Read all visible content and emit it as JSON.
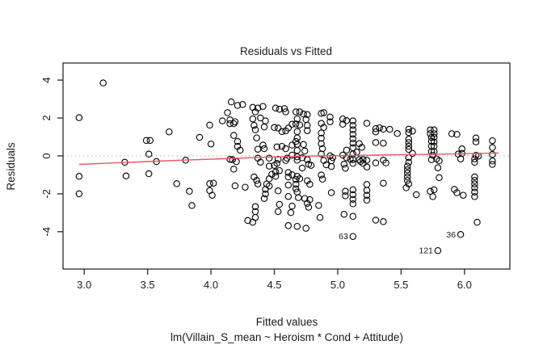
{
  "chart_data": {
    "type": "scatter",
    "title": "Residuals vs Fitted",
    "xlabel": "Fitted values",
    "xlabel_sub": "lm(Villain_S_mean ~ Heroism * Cond + Attitude)",
    "ylabel": "Residuals",
    "xlim": [
      2.833,
      6.358
    ],
    "ylim": [
      -5.97,
      4.9
    ],
    "x_ticks": [
      "3.0",
      "3.5",
      "4.0",
      "4.5",
      "5.0",
      "5.5",
      "6.0"
    ],
    "x_tick_values": [
      3.0,
      3.5,
      4.0,
      4.5,
      5.0,
      5.5,
      6.0
    ],
    "y_ticks": [
      "-4",
      "-2",
      "0",
      "2",
      "4"
    ],
    "y_tick_values": [
      -4,
      -2,
      0,
      2,
      4
    ],
    "grid": "off",
    "zero_line": {
      "y": 0,
      "style": "dotted",
      "color": "#b8b8b8"
    },
    "point_style": {
      "shape": "open-circle",
      "radius_px": 3.7,
      "stroke": "#000000",
      "fill": "none"
    },
    "smoother": {
      "name": "loess-smoother",
      "color": "#e8556a",
      "points": [
        [
          2.96,
          -0.45
        ],
        [
          3.2,
          -0.38
        ],
        [
          3.5,
          -0.3
        ],
        [
          3.8,
          -0.22
        ],
        [
          4.1,
          -0.15
        ],
        [
          4.4,
          -0.08
        ],
        [
          4.7,
          -0.02
        ],
        [
          5.0,
          0.01
        ],
        [
          5.3,
          0.04
        ],
        [
          5.6,
          0.07
        ],
        [
          5.9,
          0.1
        ],
        [
          6.27,
          0.15
        ]
      ]
    },
    "labeled_points": [
      {
        "label": "63",
        "x": 5.12,
        "y": -4.25
      },
      {
        "label": "121",
        "x": 5.79,
        "y": -5.0
      },
      {
        "label": "36",
        "x": 5.97,
        "y": -4.15
      }
    ],
    "points": [
      [
        2.96,
        2.02
      ],
      [
        2.96,
        -1.08
      ],
      [
        2.96,
        -2.0
      ],
      [
        3.15,
        3.85
      ],
      [
        3.32,
        -0.34
      ],
      [
        3.33,
        -1.06
      ],
      [
        3.49,
        0.81
      ],
      [
        3.52,
        0.81
      ],
      [
        3.51,
        0.09
      ],
      [
        3.51,
        -0.94
      ],
      [
        3.57,
        -0.3
      ],
      [
        3.67,
        1.27
      ],
      [
        3.73,
        -1.47
      ],
      [
        3.8,
        -0.23
      ],
      [
        3.83,
        -1.87
      ],
      [
        3.85,
        -2.62
      ],
      [
        3.91,
        0.98
      ],
      [
        3.99,
        1.62
      ],
      [
        4.0,
        0.63
      ],
      [
        3.99,
        -1.47
      ],
      [
        4.02,
        -1.44
      ],
      [
        3.99,
        -1.83
      ],
      [
        4.01,
        -2.08
      ],
      [
        4.09,
        1.85
      ],
      [
        4.15,
        1.9
      ],
      [
        4.19,
        1.8
      ],
      [
        4.13,
        2.28
      ],
      [
        4.16,
        2.85
      ],
      [
        4.15,
        1.7
      ],
      [
        4.18,
        1.7
      ],
      [
        4.18,
        1.08
      ],
      [
        4.21,
        2.66
      ],
      [
        4.25,
        2.71
      ],
      [
        4.21,
        0.76
      ],
      [
        4.21,
        0.5
      ],
      [
        4.23,
        0.3
      ],
      [
        4.15,
        -0.18
      ],
      [
        4.17,
        -0.2
      ],
      [
        4.2,
        -0.3
      ],
      [
        4.18,
        -0.7
      ],
      [
        4.19,
        -1.58
      ],
      [
        4.33,
        2.56
      ],
      [
        4.37,
        2.52
      ],
      [
        4.35,
        2.32
      ],
      [
        4.41,
        2.61
      ],
      [
        4.33,
        1.95
      ],
      [
        4.39,
        2.0
      ],
      [
        4.43,
        1.85
      ],
      [
        4.34,
        1.61
      ],
      [
        4.35,
        1.38
      ],
      [
        4.42,
        1.53
      ],
      [
        4.36,
        0.95
      ],
      [
        4.41,
        0.57
      ],
      [
        4.37,
        0.35
      ],
      [
        4.42,
        0.38
      ],
      [
        4.37,
        -0.12
      ],
      [
        4.39,
        -0.33
      ],
      [
        4.27,
        -1.65
      ],
      [
        4.34,
        -1.11
      ],
      [
        4.36,
        -1.3
      ],
      [
        4.37,
        -1.48
      ],
      [
        4.44,
        -1.48
      ],
      [
        4.46,
        -1.21
      ],
      [
        4.46,
        -1.59
      ],
      [
        4.43,
        -1.77
      ],
      [
        4.43,
        -2.01
      ],
      [
        4.42,
        -2.25
      ],
      [
        4.29,
        -3.41
      ],
      [
        4.33,
        -3.5
      ],
      [
        4.35,
        -3.25
      ],
      [
        4.35,
        -2.68
      ],
      [
        4.35,
        -2.94
      ],
      [
        4.51,
        2.52
      ],
      [
        4.54,
        2.46
      ],
      [
        4.58,
        2.49
      ],
      [
        4.59,
        2.32
      ],
      [
        4.5,
        1.5
      ],
      [
        4.53,
        1.47
      ],
      [
        4.56,
        1.28
      ],
      [
        4.59,
        1.32
      ],
      [
        4.61,
        1.47
      ],
      [
        4.64,
        1.67
      ],
      [
        4.52,
        0.47
      ],
      [
        4.56,
        0.5
      ],
      [
        4.59,
        0.38
      ],
      [
        4.64,
        0.57
      ],
      [
        4.64,
        0.04
      ],
      [
        4.46,
        -0.12
      ],
      [
        4.53,
        -0.18
      ],
      [
        4.6,
        -0.12
      ],
      [
        4.59,
        -0.24
      ],
      [
        4.52,
        -0.4
      ],
      [
        4.5,
        -0.5
      ],
      [
        4.46,
        -0.54
      ],
      [
        4.51,
        -0.85
      ],
      [
        4.54,
        -0.78
      ],
      [
        4.48,
        -0.97
      ],
      [
        4.51,
        -1.07
      ],
      [
        4.61,
        -0.88
      ],
      [
        4.61,
        -1.11
      ],
      [
        4.64,
        -1.0
      ],
      [
        4.61,
        -1.54
      ],
      [
        4.53,
        -1.85
      ],
      [
        4.61,
        -2.14
      ],
      [
        4.54,
        -2.56
      ],
      [
        4.53,
        -2.94
      ],
      [
        4.63,
        -2.99
      ],
      [
        4.61,
        -3.68
      ],
      [
        4.68,
        -3.72
      ],
      [
        4.75,
        -3.82
      ],
      [
        4.67,
        2.32
      ],
      [
        4.7,
        2.32
      ],
      [
        4.73,
        2.21
      ],
      [
        4.76,
        2.18
      ],
      [
        4.68,
        1.95
      ],
      [
        4.75,
        1.92
      ],
      [
        4.67,
        1.68
      ],
      [
        4.7,
        1.63
      ],
      [
        4.76,
        1.61
      ],
      [
        4.76,
        1.33
      ],
      [
        4.68,
        1.28
      ],
      [
        4.68,
        0.95
      ],
      [
        4.67,
        0.76
      ],
      [
        4.68,
        0.61
      ],
      [
        4.73,
        0.6
      ],
      [
        4.68,
        0.29
      ],
      [
        4.74,
        0.26
      ],
      [
        4.68,
        -0.05
      ],
      [
        4.72,
        -0.1
      ],
      [
        4.68,
        -0.23
      ],
      [
        4.76,
        -0.2
      ],
      [
        4.77,
        -0.44
      ],
      [
        4.79,
        -0.5
      ],
      [
        4.72,
        -0.64
      ],
      [
        4.68,
        -1.08
      ],
      [
        4.67,
        -1.25
      ],
      [
        4.7,
        -1.21
      ],
      [
        4.76,
        -1.31
      ],
      [
        4.78,
        -1.5
      ],
      [
        4.67,
        -1.5
      ],
      [
        4.67,
        -1.74
      ],
      [
        4.68,
        -1.91
      ],
      [
        4.69,
        -2.2
      ],
      [
        4.74,
        -2.25
      ],
      [
        4.78,
        -2.31
      ],
      [
        4.76,
        -2.51
      ],
      [
        4.77,
        -2.71
      ],
      [
        4.64,
        -2.65
      ],
      [
        4.85,
        -2.62
      ],
      [
        4.86,
        -3.25
      ],
      [
        4.87,
        2.24
      ],
      [
        4.89,
        2.28
      ],
      [
        4.94,
        2.05
      ],
      [
        4.94,
        1.8
      ],
      [
        4.87,
        1.71
      ],
      [
        4.89,
        1.5
      ],
      [
        4.87,
        1.21
      ],
      [
        4.87,
        0.93
      ],
      [
        4.87,
        0.64
      ],
      [
        4.88,
        0.38
      ],
      [
        4.87,
        0.1
      ],
      [
        4.94,
        0.0
      ],
      [
        4.96,
        -0.09
      ],
      [
        4.89,
        -0.24
      ],
      [
        4.95,
        -0.26
      ],
      [
        4.91,
        -0.47
      ],
      [
        4.95,
        -0.56
      ],
      [
        4.87,
        -1.01
      ],
      [
        4.88,
        -1.23
      ],
      [
        4.95,
        -1.94
      ],
      [
        5.04,
        1.95
      ],
      [
        5.07,
        1.86
      ],
      [
        5.04,
        1.67
      ],
      [
        5.12,
        1.85
      ],
      [
        5.12,
        1.61
      ],
      [
        5.12,
        1.38
      ],
      [
        5.12,
        1.14
      ],
      [
        5.12,
        0.9
      ],
      [
        5.12,
        0.67
      ],
      [
        5.12,
        0.43
      ],
      [
        5.07,
        0.3
      ],
      [
        5.04,
        0.04
      ],
      [
        5.12,
        0.1
      ],
      [
        5.15,
        0.2
      ],
      [
        5.19,
        0.45
      ],
      [
        5.17,
        0.65
      ],
      [
        5.07,
        -0.1
      ],
      [
        5.1,
        -0.18
      ],
      [
        5.05,
        -0.44
      ],
      [
        5.06,
        -0.65
      ],
      [
        5.12,
        -0.2
      ],
      [
        5.12,
        -0.4
      ],
      [
        5.17,
        -0.2
      ],
      [
        5.18,
        -0.3
      ],
      [
        5.06,
        -1.87
      ],
      [
        5.06,
        -2.11
      ],
      [
        5.12,
        -1.79
      ],
      [
        5.12,
        -2.05
      ],
      [
        5.12,
        -2.29
      ],
      [
        5.12,
        -2.53
      ],
      [
        5.05,
        -3.08
      ],
      [
        5.12,
        -3.19
      ],
      [
        5.23,
        1.72
      ],
      [
        5.3,
        1.44
      ],
      [
        5.33,
        1.48
      ],
      [
        5.3,
        1.27
      ],
      [
        5.36,
        1.41
      ],
      [
        5.41,
        1.4
      ],
      [
        5.47,
        1.18
      ],
      [
        5.3,
        0.7
      ],
      [
        5.36,
        0.67
      ],
      [
        5.2,
        -0.2
      ],
      [
        5.2,
        -0.4
      ],
      [
        5.23,
        -0.59
      ],
      [
        5.23,
        -0.23
      ],
      [
        5.3,
        -0.37
      ],
      [
        5.36,
        -0.23
      ],
      [
        5.38,
        -0.37
      ],
      [
        5.23,
        -1.51
      ],
      [
        5.23,
        -1.82
      ],
      [
        5.23,
        -2.08
      ],
      [
        5.23,
        -2.34
      ],
      [
        5.36,
        -1.44
      ],
      [
        5.3,
        -3.39
      ],
      [
        5.36,
        -3.47
      ],
      [
        5.56,
        1.41
      ],
      [
        5.59,
        1.31
      ],
      [
        5.56,
        1.23
      ],
      [
        5.56,
        0.88
      ],
      [
        5.56,
        0.7
      ],
      [
        5.56,
        0.51
      ],
      [
        5.56,
        0.34
      ],
      [
        5.59,
        0.13
      ],
      [
        5.56,
        -0.09
      ],
      [
        5.56,
        -0.34
      ],
      [
        5.55,
        -0.54
      ],
      [
        5.55,
        -0.73
      ],
      [
        5.55,
        -0.91
      ],
      [
        5.55,
        -1.11
      ],
      [
        5.55,
        -1.3
      ],
      [
        5.56,
        -1.48
      ],
      [
        5.54,
        -1.68
      ],
      [
        5.62,
        -2.05
      ],
      [
        5.73,
        1.37
      ],
      [
        5.76,
        1.37
      ],
      [
        5.73,
        1.17
      ],
      [
        5.76,
        1.17
      ],
      [
        5.74,
        0.98
      ],
      [
        5.76,
        0.98
      ],
      [
        5.74,
        0.77
      ],
      [
        5.76,
        0.74
      ],
      [
        5.74,
        0.51
      ],
      [
        5.76,
        0.51
      ],
      [
        5.74,
        0.23
      ],
      [
        5.76,
        0.23
      ],
      [
        5.75,
        0.03
      ],
      [
        5.74,
        -0.2
      ],
      [
        5.78,
        -0.16
      ],
      [
        5.8,
        -0.26
      ],
      [
        5.79,
        -0.63
      ],
      [
        5.8,
        -1.15
      ],
      [
        5.73,
        -1.87
      ],
      [
        5.76,
        -1.79
      ],
      [
        5.75,
        -2.15
      ],
      [
        5.9,
        1.17
      ],
      [
        5.94,
        1.13
      ],
      [
        5.95,
        0.09
      ],
      [
        5.98,
        0.37
      ],
      [
        5.98,
        0.13
      ],
      [
        5.97,
        -0.16
      ],
      [
        5.92,
        -1.77
      ],
      [
        5.94,
        -1.94
      ],
      [
        5.99,
        -2.08
      ],
      [
        6.09,
        0.94
      ],
      [
        6.09,
        0.74
      ],
      [
        6.09,
        0.03
      ],
      [
        6.11,
        -0.01
      ],
      [
        6.08,
        -0.16
      ],
      [
        6.08,
        -0.34
      ],
      [
        6.08,
        -1.11
      ],
      [
        6.08,
        -1.3
      ],
      [
        6.08,
        -1.48
      ],
      [
        6.08,
        -1.68
      ],
      [
        6.08,
        -1.91
      ],
      [
        6.08,
        -2.15
      ],
      [
        6.1,
        -3.5
      ],
      [
        6.22,
        0.8
      ],
      [
        6.22,
        0.44
      ],
      [
        6.22,
        0.08
      ],
      [
        6.22,
        -0.27
      ],
      [
        6.22,
        -0.45
      ]
    ]
  }
}
